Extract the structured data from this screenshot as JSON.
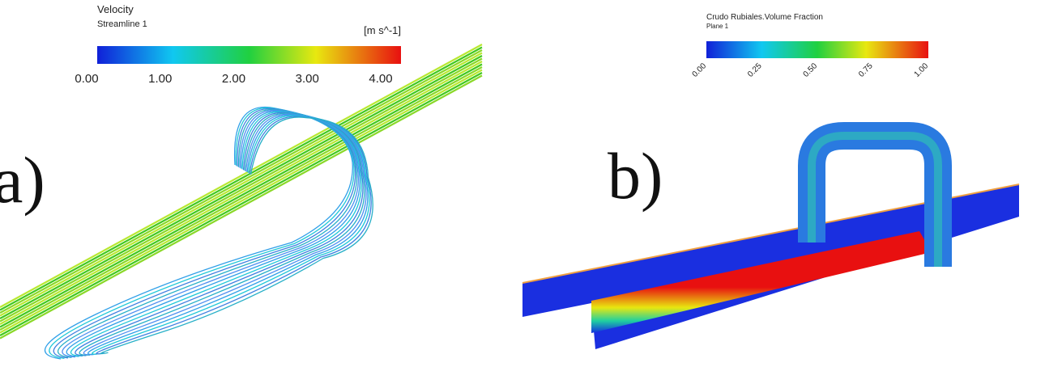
{
  "panels": [
    {
      "label": "a)",
      "legend": {
        "title": "Velocity",
        "subtitle": "Streamline 1",
        "unit": "[m s^-1]",
        "ticks": [
          "0.00",
          "1.00",
          "2.00",
          "3.00",
          "4.00"
        ]
      }
    },
    {
      "label": "b)",
      "legend": {
        "title": "Crudo Rubiales.Volume Fraction",
        "subtitle": "Plane 1",
        "ticks": [
          "0.00",
          "0.25",
          "0.50",
          "0.75",
          "1.00"
        ]
      }
    }
  ]
}
